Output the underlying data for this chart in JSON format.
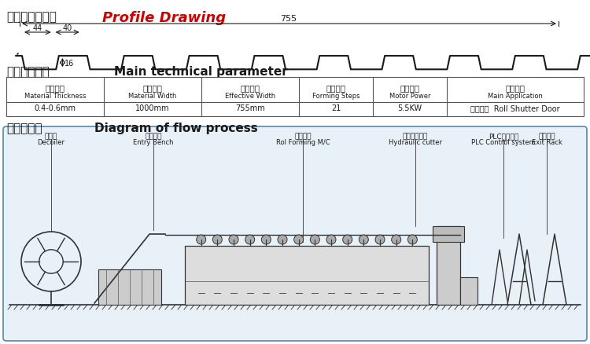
{
  "bg_color": "#ffffff",
  "title1_zh": "压制板形截面图",
  "title1_en": "Profile Drawing",
  "title2_zh": "主要技术参数",
  "title2_en": "Main technical parameter",
  "title3_zh": "工艺流程图",
  "title3_en": "Diagram of flow process",
  "dim_755": "755",
  "dim_44": "44",
  "dim_40": "40",
  "dim_16": "16",
  "table_headers_zh": [
    "进料板厚",
    "进料宽度",
    "有效宽度",
    "成型道次",
    "电机功率",
    "主要用途"
  ],
  "table_headers_en": [
    "Material Thickness",
    "Material Width",
    "Effective Width",
    "Forming Steps",
    "Motor Power",
    "Main Application"
  ],
  "table_values": [
    "0.4-0.6mm",
    "1000mm",
    "755mm",
    "21",
    "5.5KW",
    "卷闸门板  Roll Shutter Door"
  ],
  "flow_labels_zh": [
    "放料架",
    "弯曲托架",
    "成型主机",
    "液压剪切装置",
    "PLC控制系统",
    "成品托架"
  ],
  "flow_labels_en": [
    "Decoiler",
    "Entry Bench",
    "Rol Forming M/C",
    "Hydraulic cutter",
    "PLC Control system",
    "Exit Rack"
  ],
  "profile_color": "#1a1a1a",
  "text_color_zh": "#1a1a1a",
  "text_color_en": "#cc0000",
  "box_bg": "#e8f0f8",
  "box_border": "#5588aa"
}
